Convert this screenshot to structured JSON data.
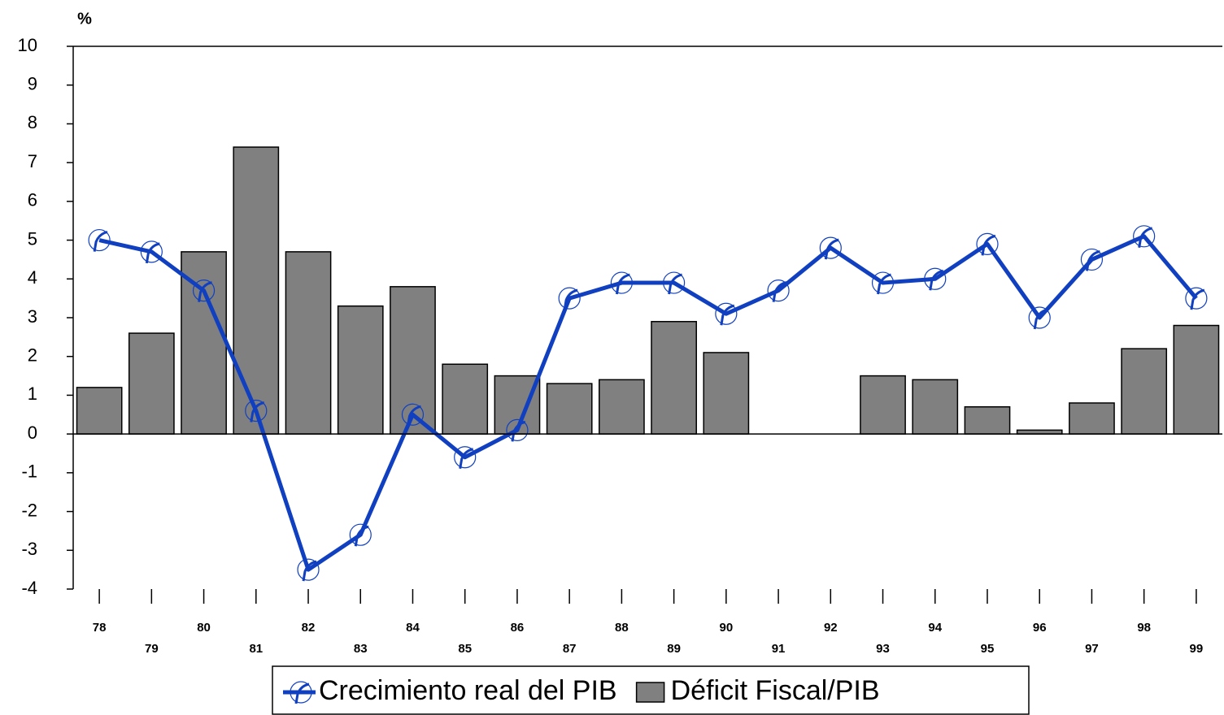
{
  "chart_data": {
    "type": "bar",
    "y_label": "%",
    "categories": [
      "78",
      "79",
      "80",
      "81",
      "82",
      "83",
      "84",
      "85",
      "86",
      "87",
      "88",
      "89",
      "90",
      "91",
      "92",
      "93",
      "94",
      "95",
      "96",
      "97",
      "98",
      "99"
    ],
    "series": [
      {
        "name": "Crecimiento real del PIB",
        "type": "line",
        "color": "#1040c0",
        "values": [
          5.0,
          4.7,
          3.7,
          0.6,
          -3.5,
          -2.6,
          0.5,
          -0.6,
          0.1,
          3.5,
          3.9,
          3.9,
          3.1,
          3.7,
          4.8,
          3.9,
          4.0,
          4.9,
          3.0,
          4.5,
          5.1,
          3.5
        ]
      },
      {
        "name": "Déficit Fiscal/PIB",
        "type": "bar",
        "color": "#808080",
        "values": [
          1.2,
          2.6,
          4.7,
          7.4,
          4.7,
          3.3,
          3.8,
          1.8,
          1.5,
          1.3,
          1.4,
          2.9,
          2.1,
          null,
          null,
          1.5,
          1.4,
          0.7,
          0.1,
          0.8,
          2.2,
          2.8
        ]
      }
    ],
    "ylim": [
      -4,
      10
    ],
    "yticks": [
      -4,
      -3,
      -2,
      -1,
      0,
      1,
      2,
      3,
      4,
      5,
      6,
      7,
      8,
      9,
      10
    ]
  }
}
